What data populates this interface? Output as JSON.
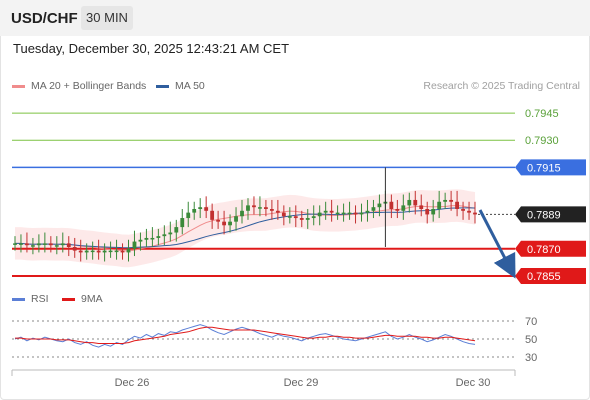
{
  "header": {
    "symbol": "USD/CHF",
    "timeframe": "30 MIN"
  },
  "datetime": "Tuesday, December 30, 2025 12:43:21 AM CET",
  "legend": [
    {
      "label": "MA 20 + Bollinger Bands",
      "color": "#f08c8c"
    },
    {
      "label": "MA 50",
      "color": "#2f5e9e"
    }
  ],
  "credit": "Research © 2025 Trading Central",
  "colors": {
    "up": "#3a8a3a",
    "down": "#c23030",
    "neutral": "#333333",
    "blue_line": "#3a6fe0",
    "support": "#e01919",
    "resistance_green": "#7cc242"
  },
  "levels": [
    {
      "label": "0.7945",
      "value": 0.7945,
      "style": "green-text"
    },
    {
      "label": "0.7930",
      "value": 0.793,
      "style": "green-text"
    },
    {
      "label": "0.7915",
      "value": 0.7915,
      "style": "blue-badge"
    },
    {
      "label": "0.7889",
      "value": 0.7889,
      "style": "black-badge"
    },
    {
      "label": "0.7870",
      "value": 0.787,
      "style": "red-badge"
    },
    {
      "label": "0.7855",
      "value": 0.7855,
      "style": "red-badge"
    }
  ],
  "rsi": {
    "legend": [
      {
        "label": "RSI",
        "color": "#5b7fd6"
      },
      {
        "label": "9MA",
        "color": "#e01919"
      }
    ],
    "axis": [
      "70",
      "50",
      "30"
    ]
  },
  "x_axis": [
    "Dec 26",
    "Dec 29",
    "Dec 30"
  ],
  "chart_data": {
    "type": "candlestick",
    "ylim": [
      0.785,
      0.7955
    ],
    "price_values": [
      0.7873,
      0.7873,
      0.7872,
      0.7872,
      0.7873,
      0.7873,
      0.7872,
      0.7872,
      0.7873,
      0.7871,
      0.7869,
      0.7868,
      0.7869,
      0.7869,
      0.7868,
      0.7869,
      0.7869,
      0.7869,
      0.7868,
      0.787,
      0.7874,
      0.7875,
      0.7876,
      0.7876,
      0.7877,
      0.7878,
      0.7879,
      0.7882,
      0.7887,
      0.789,
      0.7892,
      0.7893,
      0.7891,
      0.7886,
      0.7885,
      0.7883,
      0.7885,
      0.7888,
      0.7891,
      0.7894,
      0.7893,
      0.7893,
      0.7892,
      0.7891,
      0.789,
      0.7888,
      0.7888,
      0.7887,
      0.7886,
      0.7887,
      0.7888,
      0.789,
      0.7891,
      0.789,
      0.789,
      0.789,
      0.789,
      0.7889,
      0.789,
      0.7891,
      0.7893,
      0.7895,
      0.7896,
      0.7892,
      0.7891,
      0.7894,
      0.7897,
      0.7894,
      0.7892,
      0.7889,
      0.7892,
      0.7896,
      0.7897,
      0.7896,
      0.7892,
      0.7891,
      0.789,
      0.7889
    ],
    "rsi_values": [
      50,
      52,
      48,
      51,
      49,
      52,
      50,
      48,
      47,
      50,
      46,
      44,
      47,
      43,
      41,
      44,
      42,
      46,
      44,
      49,
      53,
      51,
      55,
      52,
      56,
      54,
      58,
      57,
      60,
      62,
      64,
      66,
      64,
      60,
      57,
      55,
      58,
      61,
      63,
      61,
      59,
      56,
      54,
      52,
      55,
      53,
      52,
      50,
      48,
      51,
      53,
      55,
      56,
      54,
      52,
      50,
      49,
      48,
      50,
      52,
      54,
      56,
      58,
      53,
      50,
      52,
      55,
      52,
      50,
      47,
      49,
      52,
      55,
      53,
      50,
      47,
      45,
      44
    ],
    "rsi_ma_values": [
      51,
      51,
      50,
      50,
      50,
      50,
      50,
      49,
      49,
      49,
      48,
      47,
      46,
      46,
      45,
      45,
      45,
      45,
      45,
      46,
      48,
      49,
      50,
      51,
      52,
      53,
      55,
      56,
      57,
      58,
      60,
      62,
      63,
      63,
      62,
      61,
      60,
      60,
      60,
      60,
      60,
      59,
      58,
      57,
      56,
      55,
      54,
      53,
      52,
      51,
      51,
      52,
      52,
      53,
      53,
      52,
      52,
      51,
      51,
      51,
      52,
      53,
      54,
      54,
      53,
      53,
      53,
      53,
      52,
      52,
      51,
      51,
      52,
      52,
      51,
      50,
      49,
      48
    ],
    "rsi_ylim": [
      20,
      80
    ]
  }
}
